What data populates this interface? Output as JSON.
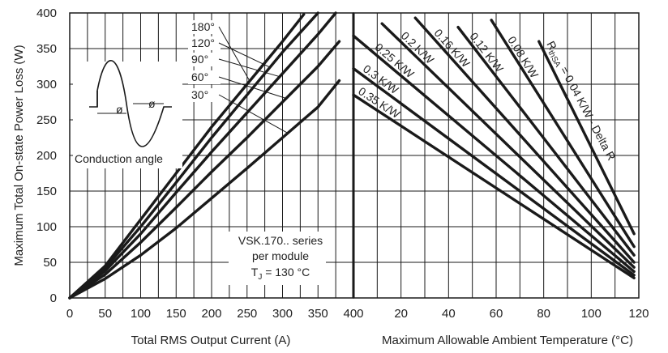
{
  "chart_data": {
    "type": "line",
    "ylabel": "Maximum Total On-state Power Loss (W)",
    "ylim": [
      0,
      400
    ],
    "y_ticks": [
      "0",
      "50",
      "100",
      "150",
      "200",
      "250",
      "300",
      "350",
      "400"
    ],
    "grid": true,
    "colors": {
      "line": "#1a1a1a",
      "grid": "#1a1a1a",
      "background": "#ffffff"
    },
    "panels": [
      {
        "name": "left",
        "xlabel": "Total RMS Output Current (A)",
        "xlim": [
          0,
          400
        ],
        "x_ticks": [
          "0",
          "50",
          "100",
          "150",
          "200",
          "250",
          "300",
          "350",
          "400"
        ],
        "series": [
          {
            "name": "180°",
            "points": [
              [
                0,
                0
              ],
              [
                50,
                45
              ],
              [
                100,
                110
              ],
              [
                150,
                175
              ],
              [
                200,
                240
              ],
              [
                250,
                300
              ],
              [
                300,
                360
              ],
              [
                330,
                398
              ]
            ]
          },
          {
            "name": "120°",
            "points": [
              [
                0,
                0
              ],
              [
                50,
                42
              ],
              [
                100,
                100
              ],
              [
                150,
                162
              ],
              [
                200,
                225
              ],
              [
                250,
                285
              ],
              [
                300,
                345
              ],
              [
                350,
                400
              ]
            ]
          },
          {
            "name": "90°",
            "points": [
              [
                0,
                0
              ],
              [
                50,
                38
              ],
              [
                100,
                90
              ],
              [
                150,
                148
              ],
              [
                200,
                205
              ],
              [
                250,
                260
              ],
              [
                300,
                315
              ],
              [
                350,
                370
              ],
              [
                375,
                400
              ]
            ]
          },
          {
            "name": "60°",
            "points": [
              [
                0,
                0
              ],
              [
                50,
                33
              ],
              [
                100,
                78
              ],
              [
                150,
                127
              ],
              [
                200,
                177
              ],
              [
                250,
                225
              ],
              [
                300,
                275
              ],
              [
                350,
                325
              ],
              [
                380,
                360
              ]
            ]
          },
          {
            "name": "30°",
            "points": [
              [
                0,
                0
              ],
              [
                50,
                27
              ],
              [
                100,
                60
              ],
              [
                150,
                98
              ],
              [
                200,
                140
              ],
              [
                250,
                182
              ],
              [
                300,
                225
              ],
              [
                350,
                268
              ],
              [
                380,
                305
              ]
            ]
          }
        ],
        "annotations": {
          "series_label": "VSK.170.. series",
          "module_label": "per module",
          "tj_label": "T",
          "tj_subscript": "J",
          "tj_value": " = 130 °C",
          "inset_label": "Conduction angle",
          "phi_symbol": "ø"
        }
      },
      {
        "name": "right",
        "xlabel": "Maximum Allowable Ambient Temperature (°C)",
        "xlim": [
          0,
          120
        ],
        "x_ticks": [
          "0",
          "20",
          "40",
          "60",
          "80",
          "100",
          "120"
        ],
        "series": [
          {
            "name": "0.04 K/W",
            "points": [
              [
                78,
                360
              ],
              [
                118,
                90
              ]
            ]
          },
          {
            "name": "0.08 K/W",
            "points": [
              [
                58,
                390
              ],
              [
                118,
                72
              ]
            ]
          },
          {
            "name": "0.12 K/W",
            "points": [
              [
                44,
                380
              ],
              [
                118,
                60
              ]
            ]
          },
          {
            "name": "0.16 K/W",
            "points": [
              [
                26,
                393
              ],
              [
                118,
                50
              ]
            ]
          },
          {
            "name": "0.2 K/W",
            "points": [
              [
                12,
                385
              ],
              [
                118,
                43
              ]
            ]
          },
          {
            "name": "0.25 K/W",
            "points": [
              [
                0,
                368
              ],
              [
                118,
                37
              ]
            ]
          },
          {
            "name": "0.3 K/W",
            "points": [
              [
                0,
                322
              ],
              [
                118,
                32
              ]
            ]
          },
          {
            "name": "0.35 K/W",
            "points": [
              [
                0,
                285
              ],
              [
                118,
                28
              ]
            ]
          }
        ],
        "rth_label": "R",
        "rth_subscript": "thSA",
        "rth_suffix": " = 0.04 K/W - Delta R"
      }
    ]
  }
}
